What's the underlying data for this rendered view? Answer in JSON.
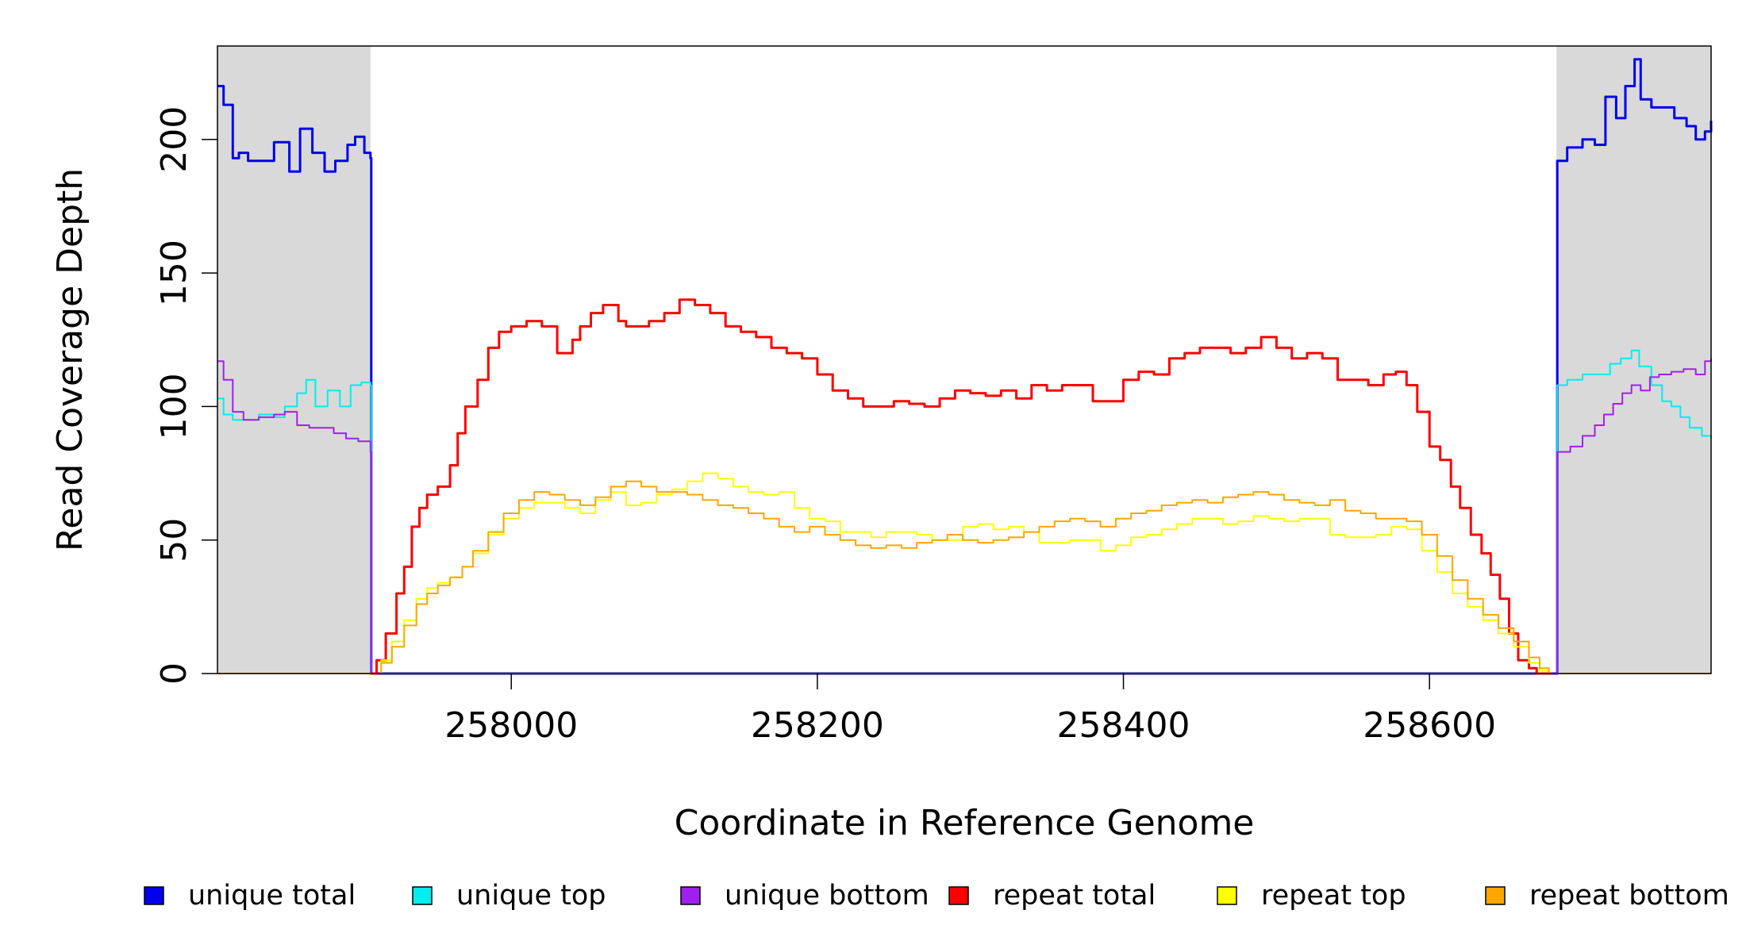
{
  "chart_data": {
    "type": "line",
    "title": "",
    "xlabel": "Coordinate in Reference Genome",
    "ylabel": "Read Coverage Depth",
    "xlim": [
      257808,
      258784
    ],
    "ylim": [
      0,
      235
    ],
    "x_ticks": [
      258000,
      258200,
      258400,
      258600
    ],
    "y_ticks": [
      0,
      50,
      100,
      150,
      200
    ],
    "grid": false,
    "shaded_regions": [
      [
        257808,
        257908
      ],
      [
        258683,
        258784
      ]
    ],
    "shaded_color": "#d9d9d9",
    "legend": {
      "placement": "bottom",
      "entries": [
        "unique total",
        "unique top",
        "unique bottom",
        "repeat total",
        "repeat top",
        "repeat bottom"
      ]
    },
    "series": [
      {
        "name": "unique total",
        "color": "#0000ee",
        "width": 3,
        "x": [
          257808,
          257812,
          257818,
          257822,
          257828,
          257835,
          257845,
          257855,
          257862,
          257870,
          257878,
          257885,
          257893,
          257898,
          257904,
          257908,
          257908.5,
          258683,
          258683.5,
          258690,
          258700,
          258708,
          258715,
          258722,
          258728,
          258734,
          258738,
          258745,
          258752,
          258760,
          258768,
          258774,
          258780,
          258784
        ],
        "y": [
          220,
          213,
          193,
          195,
          192,
          192,
          199,
          188,
          204,
          195,
          188,
          192,
          198,
          201,
          195,
          193,
          0,
          0,
          192,
          197,
          200,
          198,
          216,
          208,
          220,
          230,
          215,
          212,
          212,
          208,
          205,
          200,
          203,
          207
        ]
      },
      {
        "name": "unique top",
        "color": "#00eeee",
        "width": 2,
        "x": [
          257808,
          257812,
          257818,
          257825,
          257835,
          257845,
          257852,
          257860,
          257866,
          257872,
          257880,
          257888,
          257895,
          257902,
          257908,
          257908.5,
          258683,
          258683.5,
          258690,
          258700,
          258710,
          258718,
          258725,
          258732,
          258737,
          258745,
          258752,
          258758,
          258764,
          258770,
          258778,
          258784
        ],
        "y": [
          103,
          97,
          95,
          95,
          97,
          96,
          100,
          105,
          110,
          100,
          106,
          100,
          108,
          109,
          108,
          0,
          0,
          108,
          110,
          112,
          112,
          116,
          118,
          121,
          115,
          108,
          102,
          100,
          96,
          92,
          89,
          88
        ]
      },
      {
        "name": "unique bottom",
        "color": "#a020f0",
        "width": 2,
        "x": [
          257808,
          257812,
          257818,
          257825,
          257835,
          257845,
          257852,
          257860,
          257868,
          257876,
          257884,
          257892,
          257900,
          257908,
          257908.5,
          258683,
          258683.5,
          258692,
          258700,
          258708,
          258714,
          258720,
          258726,
          258732,
          258738,
          258744,
          258750,
          258758,
          258766,
          258774,
          258780,
          258784
        ],
        "y": [
          117,
          110,
          98,
          95,
          96,
          97,
          98,
          93,
          92,
          92,
          90,
          88,
          87,
          83,
          0,
          0,
          83,
          85,
          89,
          93,
          97,
          101,
          105,
          108,
          106,
          111,
          112,
          113,
          114,
          112,
          117,
          118
        ]
      },
      {
        "name": "repeat total",
        "color": "#ff0000",
        "width": 3,
        "x": [
          257908,
          257912,
          257918,
          257925,
          257930,
          257935,
          257940,
          257945,
          257952,
          257960,
          257965,
          257970,
          257978,
          257985,
          257992,
          258000,
          258010,
          258020,
          258030,
          258040,
          258045,
          258052,
          258060,
          258070,
          258075,
          258082,
          258090,
          258100,
          258110,
          258120,
          258130,
          258140,
          258150,
          258160,
          258170,
          258180,
          258190,
          258200,
          258210,
          258220,
          258230,
          258240,
          258250,
          258260,
          258270,
          258280,
          258290,
          258300,
          258310,
          258320,
          258330,
          258340,
          258350,
          258360,
          258370,
          258380,
          258390,
          258400,
          258410,
          258420,
          258430,
          258440,
          258450,
          258460,
          258470,
          258480,
          258490,
          258500,
          258510,
          258520,
          258530,
          258540,
          258550,
          258560,
          258570,
          258578,
          258585,
          258592,
          258600,
          258607,
          258614,
          258620,
          258627,
          258634,
          258640,
          258646,
          258652,
          258658,
          258665,
          258670,
          258675,
          258680
        ],
        "y": [
          0,
          5,
          15,
          30,
          40,
          55,
          62,
          67,
          70,
          78,
          90,
          100,
          110,
          122,
          128,
          130,
          132,
          130,
          120,
          125,
          130,
          135,
          138,
          132,
          130,
          130,
          132,
          135,
          140,
          138,
          135,
          130,
          128,
          126,
          122,
          120,
          118,
          112,
          106,
          103,
          100,
          100,
          102,
          101,
          100,
          103,
          106,
          105,
          104,
          106,
          103,
          108,
          106,
          108,
          108,
          102,
          102,
          110,
          113,
          112,
          118,
          120,
          122,
          122,
          120,
          122,
          126,
          122,
          118,
          120,
          118,
          110,
          110,
          108,
          112,
          113,
          108,
          98,
          85,
          80,
          70,
          62,
          52,
          45,
          37,
          28,
          15,
          5,
          2,
          0,
          0,
          0
        ]
      },
      {
        "name": "repeat top",
        "color": "#ffff00",
        "width": 2,
        "x": [
          257908,
          257915,
          257922,
          257930,
          257938,
          257945,
          257952,
          257960,
          257968,
          257975,
          257985,
          257995,
          258005,
          258015,
          258025,
          258035,
          258045,
          258055,
          258065,
          258075,
          258085,
          258095,
          258105,
          258115,
          258125,
          258135,
          258145,
          258155,
          258165,
          258175,
          258185,
          258195,
          258205,
          258215,
          258225,
          258235,
          258245,
          258255,
          258265,
          258275,
          258285,
          258295,
          258305,
          258315,
          258325,
          258335,
          258345,
          258355,
          258365,
          258375,
          258385,
          258395,
          258405,
          258415,
          258425,
          258435,
          258445,
          258455,
          258465,
          258475,
          258485,
          258495,
          258505,
          258515,
          258525,
          258535,
          258545,
          258555,
          258565,
          258575,
          258585,
          258595,
          258605,
          258615,
          258625,
          258635,
          258645,
          258655,
          258665,
          258672,
          258678,
          258683
        ],
        "y": [
          0,
          5,
          12,
          20,
          28,
          32,
          34,
          36,
          40,
          45,
          52,
          58,
          62,
          64,
          64,
          62,
          60,
          65,
          68,
          63,
          64,
          67,
          69,
          72,
          75,
          73,
          70,
          68,
          67,
          68,
          62,
          58,
          57,
          53,
          53,
          51,
          53,
          53,
          52,
          50,
          50,
          55,
          56,
          54,
          55,
          53,
          49,
          49,
          50,
          50,
          46,
          48,
          51,
          52,
          54,
          56,
          58,
          58,
          56,
          57,
          59,
          58,
          57,
          58,
          58,
          52,
          51,
          51,
          52,
          55,
          54,
          46,
          38,
          30,
          25,
          20,
          15,
          10,
          4,
          1,
          0,
          0
        ]
      },
      {
        "name": "repeat bottom",
        "color": "#ffa500",
        "width": 2,
        "x": [
          257908,
          257915,
          257922,
          257930,
          257938,
          257945,
          257952,
          257960,
          257968,
          257975,
          257985,
          257995,
          258005,
          258015,
          258025,
          258035,
          258045,
          258055,
          258065,
          258075,
          258085,
          258095,
          258105,
          258115,
          258125,
          258135,
          258145,
          258155,
          258165,
          258175,
          258185,
          258195,
          258205,
          258215,
          258225,
          258235,
          258245,
          258255,
          258265,
          258275,
          258285,
          258295,
          258305,
          258315,
          258325,
          258335,
          258345,
          258355,
          258365,
          258375,
          258385,
          258395,
          258405,
          258415,
          258425,
          258435,
          258445,
          258455,
          258465,
          258475,
          258485,
          258495,
          258505,
          258515,
          258525,
          258535,
          258545,
          258555,
          258565,
          258575,
          258585,
          258595,
          258605,
          258615,
          258625,
          258635,
          258645,
          258655,
          258665,
          258672,
          258678,
          258683
        ],
        "y": [
          0,
          4,
          10,
          18,
          26,
          30,
          33,
          36,
          40,
          46,
          53,
          60,
          65,
          68,
          67,
          65,
          63,
          66,
          70,
          72,
          70,
          68,
          68,
          67,
          65,
          63,
          62,
          60,
          58,
          55,
          53,
          55,
          52,
          50,
          48,
          47,
          48,
          47,
          49,
          50,
          52,
          50,
          49,
          50,
          51,
          53,
          55,
          57,
          58,
          57,
          55,
          58,
          60,
          61,
          63,
          64,
          65,
          64,
          66,
          67,
          68,
          67,
          65,
          64,
          63,
          65,
          61,
          60,
          58,
          58,
          57,
          52,
          44,
          35,
          28,
          22,
          17,
          12,
          6,
          2,
          0,
          0
        ]
      }
    ]
  }
}
